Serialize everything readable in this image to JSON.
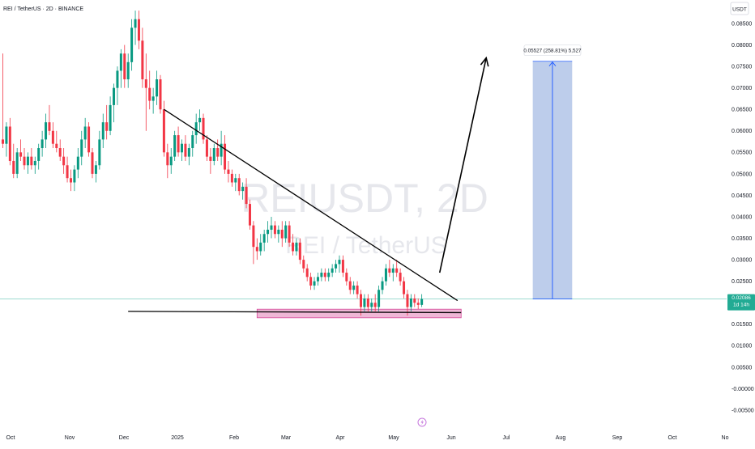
{
  "header": {
    "title": "REI / TetherUS · 2D · BINANCE"
  },
  "watermark": {
    "symbol": "REIUSDT, 2D",
    "name": "REI / TetherUS"
  },
  "price_axis": {
    "currency": "USDT",
    "last_price": "0.02086",
    "countdown": "1d 14h",
    "last_color": "#22ab94"
  },
  "measure_label": "0.05527 (258.81%) 5,527",
  "colors": {
    "up": "#089981",
    "down": "#f23645",
    "measure_fill": "#b2c4e8",
    "measure_line": "#2962ff",
    "support_zone": "#e899c4"
  },
  "chart_data": {
    "type": "candlestick",
    "title": "REI / TetherUS · 2D · BINANCE",
    "ylim": [
      -0.0055,
      0.0885
    ],
    "y_ticks": [
      "0.08500",
      "0.08000",
      "0.07500",
      "0.07000",
      "0.06500",
      "0.06000",
      "0.05500",
      "0.05000",
      "0.04500",
      "0.04000",
      "0.03500",
      "0.03000",
      "0.02500",
      "0.02000",
      "0.01500",
      "0.01000",
      "0.00500",
      "-0.00000",
      "-0.00500"
    ],
    "x_ticks": [
      "Oct",
      "Nov",
      "Dec",
      "2025",
      "Feb",
      "Mar",
      "Apr",
      "May",
      "Jun",
      "Jul",
      "Aug",
      "Sep",
      "Oct",
      "No"
    ],
    "candles": [
      {
        "o": 0.058,
        "h": 0.078,
        "l": 0.056,
        "c": 0.057
      },
      {
        "o": 0.057,
        "h": 0.062,
        "l": 0.054,
        "c": 0.061
      },
      {
        "o": 0.061,
        "h": 0.063,
        "l": 0.052,
        "c": 0.053
      },
      {
        "o": 0.053,
        "h": 0.057,
        "l": 0.049,
        "c": 0.05
      },
      {
        "o": 0.05,
        "h": 0.056,
        "l": 0.049,
        "c": 0.055
      },
      {
        "o": 0.055,
        "h": 0.058,
        "l": 0.053,
        "c": 0.054
      },
      {
        "o": 0.054,
        "h": 0.056,
        "l": 0.051,
        "c": 0.052
      },
      {
        "o": 0.052,
        "h": 0.055,
        "l": 0.05,
        "c": 0.054
      },
      {
        "o": 0.054,
        "h": 0.056,
        "l": 0.051,
        "c": 0.052
      },
      {
        "o": 0.052,
        "h": 0.054,
        "l": 0.05,
        "c": 0.053
      },
      {
        "o": 0.053,
        "h": 0.057,
        "l": 0.051,
        "c": 0.056
      },
      {
        "o": 0.056,
        "h": 0.06,
        "l": 0.054,
        "c": 0.058
      },
      {
        "o": 0.058,
        "h": 0.064,
        "l": 0.056,
        "c": 0.062
      },
      {
        "o": 0.062,
        "h": 0.066,
        "l": 0.059,
        "c": 0.06
      },
      {
        "o": 0.06,
        "h": 0.062,
        "l": 0.056,
        "c": 0.057
      },
      {
        "o": 0.057,
        "h": 0.06,
        "l": 0.055,
        "c": 0.056
      },
      {
        "o": 0.056,
        "h": 0.058,
        "l": 0.053,
        "c": 0.054
      },
      {
        "o": 0.054,
        "h": 0.056,
        "l": 0.05,
        "c": 0.052
      },
      {
        "o": 0.052,
        "h": 0.054,
        "l": 0.048,
        "c": 0.049
      },
      {
        "o": 0.049,
        "h": 0.051,
        "l": 0.046,
        "c": 0.048
      },
      {
        "o": 0.048,
        "h": 0.052,
        "l": 0.046,
        "c": 0.051
      },
      {
        "o": 0.051,
        "h": 0.056,
        "l": 0.049,
        "c": 0.054
      },
      {
        "o": 0.054,
        "h": 0.06,
        "l": 0.052,
        "c": 0.058
      },
      {
        "o": 0.058,
        "h": 0.063,
        "l": 0.056,
        "c": 0.061
      },
      {
        "o": 0.061,
        "h": 0.062,
        "l": 0.054,
        "c": 0.055
      },
      {
        "o": 0.055,
        "h": 0.056,
        "l": 0.049,
        "c": 0.05
      },
      {
        "o": 0.05,
        "h": 0.053,
        "l": 0.048,
        "c": 0.052
      },
      {
        "o": 0.052,
        "h": 0.06,
        "l": 0.051,
        "c": 0.058
      },
      {
        "o": 0.058,
        "h": 0.064,
        "l": 0.056,
        "c": 0.062
      },
      {
        "o": 0.062,
        "h": 0.066,
        "l": 0.058,
        "c": 0.06
      },
      {
        "o": 0.06,
        "h": 0.068,
        "l": 0.059,
        "c": 0.066
      },
      {
        "o": 0.066,
        "h": 0.071,
        "l": 0.062,
        "c": 0.07
      },
      {
        "o": 0.07,
        "h": 0.075,
        "l": 0.066,
        "c": 0.074
      },
      {
        "o": 0.074,
        "h": 0.079,
        "l": 0.07,
        "c": 0.078
      },
      {
        "o": 0.078,
        "h": 0.08,
        "l": 0.07,
        "c": 0.072
      },
      {
        "o": 0.072,
        "h": 0.078,
        "l": 0.07,
        "c": 0.076
      },
      {
        "o": 0.076,
        "h": 0.086,
        "l": 0.074,
        "c": 0.084
      },
      {
        "o": 0.084,
        "h": 0.088,
        "l": 0.08,
        "c": 0.086
      },
      {
        "o": 0.086,
        "h": 0.088,
        "l": 0.079,
        "c": 0.081
      },
      {
        "o": 0.081,
        "h": 0.084,
        "l": 0.07,
        "c": 0.072
      },
      {
        "o": 0.072,
        "h": 0.078,
        "l": 0.06,
        "c": 0.07
      },
      {
        "o": 0.07,
        "h": 0.074,
        "l": 0.065,
        "c": 0.067
      },
      {
        "o": 0.067,
        "h": 0.07,
        "l": 0.064,
        "c": 0.068
      },
      {
        "o": 0.068,
        "h": 0.074,
        "l": 0.066,
        "c": 0.072
      },
      {
        "o": 0.072,
        "h": 0.073,
        "l": 0.064,
        "c": 0.065
      },
      {
        "o": 0.065,
        "h": 0.067,
        "l": 0.054,
        "c": 0.055
      },
      {
        "o": 0.055,
        "h": 0.057,
        "l": 0.049,
        "c": 0.052
      },
      {
        "o": 0.052,
        "h": 0.056,
        "l": 0.05,
        "c": 0.054
      },
      {
        "o": 0.054,
        "h": 0.06,
        "l": 0.053,
        "c": 0.059
      },
      {
        "o": 0.059,
        "h": 0.061,
        "l": 0.054,
        "c": 0.055
      },
      {
        "o": 0.055,
        "h": 0.058,
        "l": 0.053,
        "c": 0.057
      },
      {
        "o": 0.057,
        "h": 0.059,
        "l": 0.053,
        "c": 0.054
      },
      {
        "o": 0.054,
        "h": 0.057,
        "l": 0.052,
        "c": 0.056
      },
      {
        "o": 0.056,
        "h": 0.06,
        "l": 0.054,
        "c": 0.059
      },
      {
        "o": 0.059,
        "h": 0.064,
        "l": 0.057,
        "c": 0.062
      },
      {
        "o": 0.062,
        "h": 0.065,
        "l": 0.06,
        "c": 0.063
      },
      {
        "o": 0.063,
        "h": 0.064,
        "l": 0.057,
        "c": 0.058
      },
      {
        "o": 0.058,
        "h": 0.059,
        "l": 0.053,
        "c": 0.054
      },
      {
        "o": 0.054,
        "h": 0.056,
        "l": 0.05,
        "c": 0.053
      },
      {
        "o": 0.053,
        "h": 0.057,
        "l": 0.052,
        "c": 0.056
      },
      {
        "o": 0.056,
        "h": 0.058,
        "l": 0.053,
        "c": 0.054
      },
      {
        "o": 0.054,
        "h": 0.06,
        "l": 0.052,
        "c": 0.057
      },
      {
        "o": 0.057,
        "h": 0.059,
        "l": 0.05,
        "c": 0.051
      },
      {
        "o": 0.051,
        "h": 0.053,
        "l": 0.048,
        "c": 0.05
      },
      {
        "o": 0.05,
        "h": 0.051,
        "l": 0.047,
        "c": 0.048
      },
      {
        "o": 0.048,
        "h": 0.05,
        "l": 0.046,
        "c": 0.049
      },
      {
        "o": 0.049,
        "h": 0.05,
        "l": 0.045,
        "c": 0.046
      },
      {
        "o": 0.046,
        "h": 0.048,
        "l": 0.044,
        "c": 0.047
      },
      {
        "o": 0.047,
        "h": 0.049,
        "l": 0.042,
        "c": 0.043
      },
      {
        "o": 0.043,
        "h": 0.044,
        "l": 0.037,
        "c": 0.038
      },
      {
        "o": 0.038,
        "h": 0.039,
        "l": 0.029,
        "c": 0.033
      },
      {
        "o": 0.033,
        "h": 0.035,
        "l": 0.03,
        "c": 0.032
      },
      {
        "o": 0.032,
        "h": 0.036,
        "l": 0.031,
        "c": 0.034
      },
      {
        "o": 0.034,
        "h": 0.037,
        "l": 0.032,
        "c": 0.036
      },
      {
        "o": 0.036,
        "h": 0.039,
        "l": 0.034,
        "c": 0.037
      },
      {
        "o": 0.037,
        "h": 0.04,
        "l": 0.035,
        "c": 0.038
      },
      {
        "o": 0.038,
        "h": 0.039,
        "l": 0.035,
        "c": 0.036
      },
      {
        "o": 0.036,
        "h": 0.038,
        "l": 0.034,
        "c": 0.037
      },
      {
        "o": 0.037,
        "h": 0.039,
        "l": 0.033,
        "c": 0.035
      },
      {
        "o": 0.035,
        "h": 0.039,
        "l": 0.034,
        "c": 0.038
      },
      {
        "o": 0.038,
        "h": 0.039,
        "l": 0.033,
        "c": 0.034
      },
      {
        "o": 0.034,
        "h": 0.036,
        "l": 0.031,
        "c": 0.032
      },
      {
        "o": 0.032,
        "h": 0.035,
        "l": 0.031,
        "c": 0.034
      },
      {
        "o": 0.034,
        "h": 0.035,
        "l": 0.029,
        "c": 0.03
      },
      {
        "o": 0.03,
        "h": 0.031,
        "l": 0.027,
        "c": 0.028
      },
      {
        "o": 0.028,
        "h": 0.029,
        "l": 0.025,
        "c": 0.026
      },
      {
        "o": 0.026,
        "h": 0.027,
        "l": 0.023,
        "c": 0.024
      },
      {
        "o": 0.024,
        "h": 0.026,
        "l": 0.023,
        "c": 0.025
      },
      {
        "o": 0.025,
        "h": 0.027,
        "l": 0.024,
        "c": 0.026
      },
      {
        "o": 0.026,
        "h": 0.028,
        "l": 0.025,
        "c": 0.027
      },
      {
        "o": 0.027,
        "h": 0.028,
        "l": 0.025,
        "c": 0.026
      },
      {
        "o": 0.026,
        "h": 0.028,
        "l": 0.025,
        "c": 0.027
      },
      {
        "o": 0.027,
        "h": 0.029,
        "l": 0.026,
        "c": 0.028
      },
      {
        "o": 0.028,
        "h": 0.03,
        "l": 0.027,
        "c": 0.029
      },
      {
        "o": 0.029,
        "h": 0.031,
        "l": 0.027,
        "c": 0.03
      },
      {
        "o": 0.03,
        "h": 0.031,
        "l": 0.026,
        "c": 0.027
      },
      {
        "o": 0.027,
        "h": 0.028,
        "l": 0.024,
        "c": 0.025
      },
      {
        "o": 0.025,
        "h": 0.026,
        "l": 0.022,
        "c": 0.023
      },
      {
        "o": 0.023,
        "h": 0.025,
        "l": 0.022,
        "c": 0.024
      },
      {
        "o": 0.024,
        "h": 0.025,
        "l": 0.021,
        "c": 0.022
      },
      {
        "o": 0.022,
        "h": 0.023,
        "l": 0.017,
        "c": 0.019
      },
      {
        "o": 0.019,
        "h": 0.022,
        "l": 0.018,
        "c": 0.021
      },
      {
        "o": 0.021,
        "h": 0.022,
        "l": 0.018,
        "c": 0.019
      },
      {
        "o": 0.019,
        "h": 0.021,
        "l": 0.018,
        "c": 0.02
      },
      {
        "o": 0.02,
        "h": 0.022,
        "l": 0.018,
        "c": 0.019
      },
      {
        "o": 0.019,
        "h": 0.024,
        "l": 0.018,
        "c": 0.023
      },
      {
        "o": 0.023,
        "h": 0.026,
        "l": 0.022,
        "c": 0.025
      },
      {
        "o": 0.025,
        "h": 0.029,
        "l": 0.024,
        "c": 0.028
      },
      {
        "o": 0.028,
        "h": 0.03,
        "l": 0.026,
        "c": 0.027
      },
      {
        "o": 0.027,
        "h": 0.029,
        "l": 0.025,
        "c": 0.028
      },
      {
        "o": 0.028,
        "h": 0.03,
        "l": 0.026,
        "c": 0.027
      },
      {
        "o": 0.027,
        "h": 0.028,
        "l": 0.024,
        "c": 0.025
      },
      {
        "o": 0.025,
        "h": 0.026,
        "l": 0.021,
        "c": 0.022
      },
      {
        "o": 0.022,
        "h": 0.023,
        "l": 0.017,
        "c": 0.019
      },
      {
        "o": 0.019,
        "h": 0.022,
        "l": 0.018,
        "c": 0.021
      },
      {
        "o": 0.021,
        "h": 0.022,
        "l": 0.019,
        "c": 0.02
      },
      {
        "o": 0.02,
        "h": 0.021,
        "l": 0.0185,
        "c": 0.0195
      },
      {
        "o": 0.0195,
        "h": 0.022,
        "l": 0.019,
        "c": 0.0209
      }
    ],
    "drawings": {
      "descending_trendline": {
        "from": {
          "bar": 45,
          "price": 0.065
        },
        "to": {
          "bar": 127,
          "price": 0.0205
        }
      },
      "support_line": {
        "from": {
          "bar": 35,
          "price": 0.018
        },
        "to": {
          "bar": 128,
          "price": 0.0177
        }
      },
      "support_zone": {
        "from_bar": 71,
        "to_bar": 128,
        "top": 0.0185,
        "bottom": 0.0165
      },
      "projection_arrow": [
        {
          "bar": 122,
          "price": 0.027
        },
        {
          "bar": 135,
          "price": 0.077
        }
      ],
      "target_box": {
        "from_bar": 148,
        "to_bar": 159,
        "bottom": 0.0209,
        "top": 0.0762
      }
    }
  }
}
